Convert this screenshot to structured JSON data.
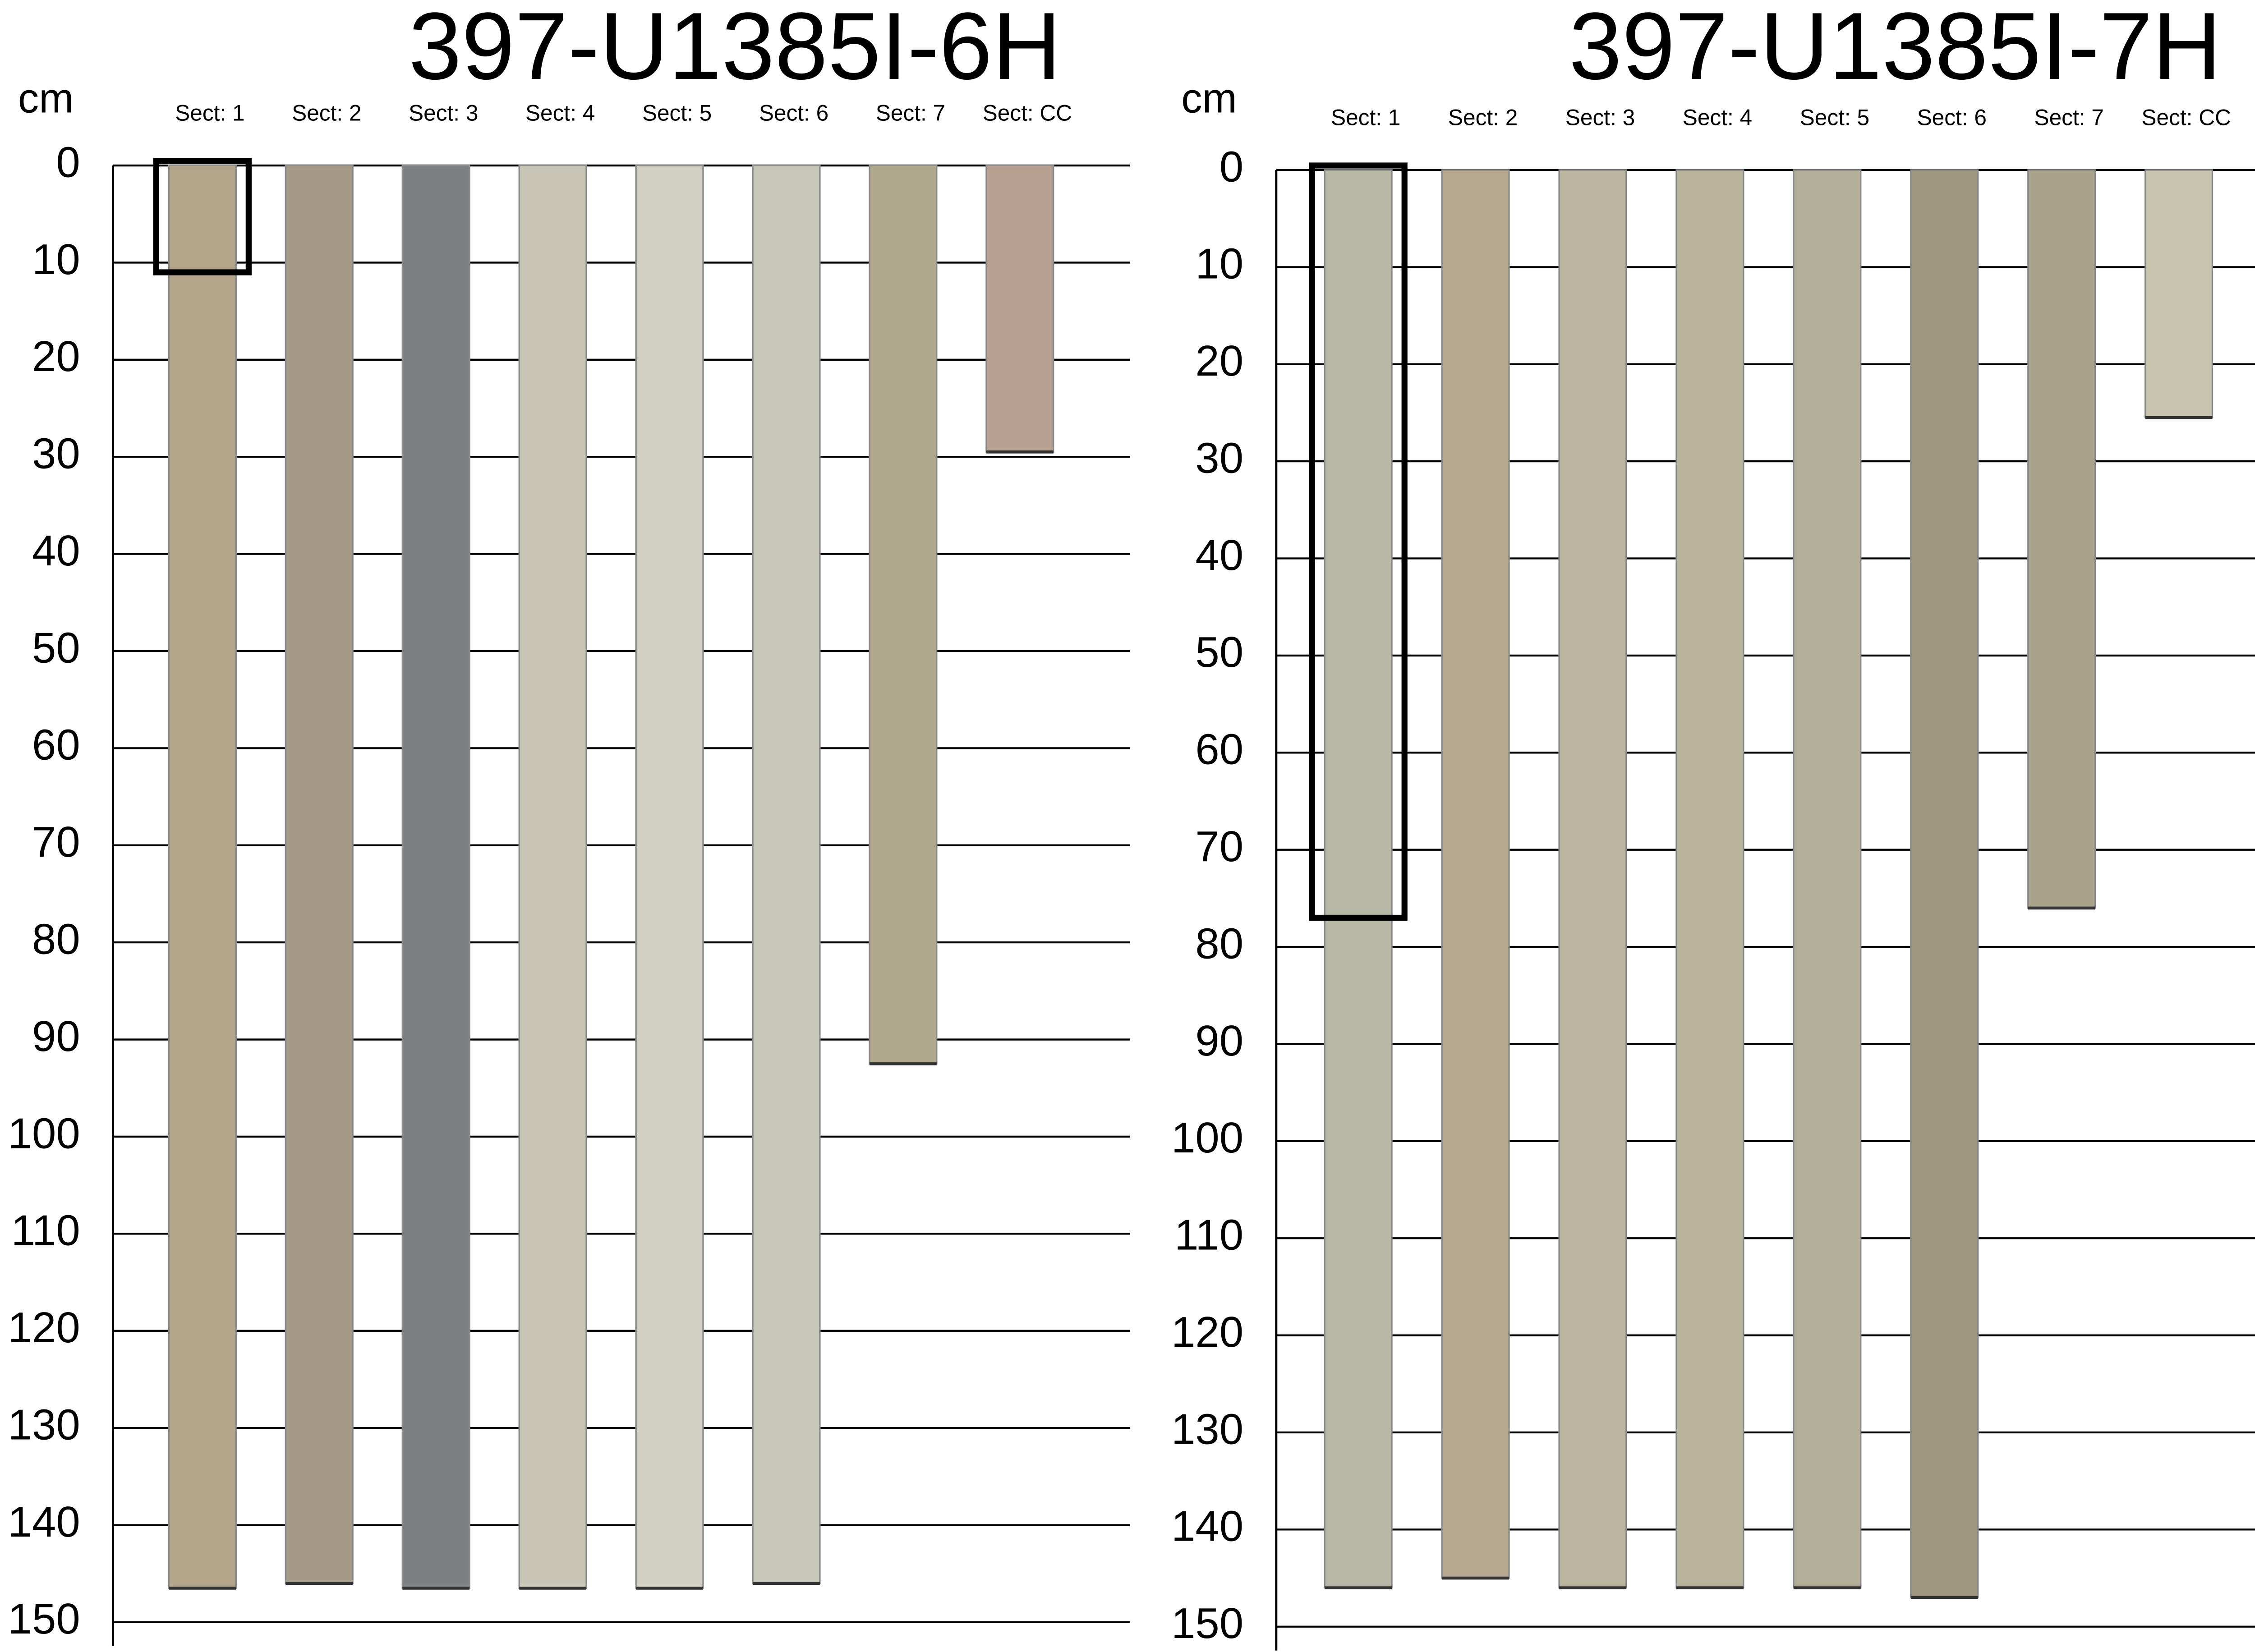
{
  "panels": [
    {
      "title": "397-U1385I-6H",
      "axis_label": "cm",
      "ylim": [
        0,
        150
      ],
      "yticks": [
        0,
        10,
        20,
        30,
        40,
        50,
        60,
        70,
        80,
        90,
        100,
        110,
        120,
        130,
        140,
        150
      ],
      "sections": [
        {
          "label": "Sect: 1",
          "length": 146.5,
          "color": "#b3a48a"
        },
        {
          "label": "Sect: 2",
          "length": 146,
          "color": "#a49a86"
        },
        {
          "label": "Sect: 3",
          "length": 146.5,
          "color": "#7d7f82"
        },
        {
          "label": "Sect: 4",
          "length": 146.5,
          "color": "#c9c6b6"
        },
        {
          "label": "Sect: 5",
          "length": 146.5,
          "color": "#d2d0c3"
        },
        {
          "label": "Sect: 6",
          "length": 146,
          "color": "#c8c8b8"
        },
        {
          "label": "Sect: 7",
          "length": 92.5,
          "color": "#b0a88c"
        },
        {
          "label": "Sect: CC",
          "length": 29.5,
          "color": "#b7a090"
        }
      ],
      "highlight": {
        "section": 0,
        "top": 0,
        "bottom": 11
      }
    },
    {
      "title": "397-U1385I-7H",
      "axis_label": "cm",
      "ylim": [
        0,
        150
      ],
      "yticks": [
        0,
        10,
        20,
        30,
        40,
        50,
        60,
        70,
        80,
        90,
        100,
        110,
        120,
        130,
        140,
        150
      ],
      "sections": [
        {
          "label": "Sect: 1",
          "length": 146,
          "color": "#b8b8a6"
        },
        {
          "label": "Sect: 2",
          "length": 145,
          "color": "#b8a890"
        },
        {
          "label": "Sect: 3",
          "length": 146,
          "color": "#bcb59f"
        },
        {
          "label": "Sect: 4",
          "length": 146,
          "color": "#b9b39c"
        },
        {
          "label": "Sect: 5",
          "length": 146,
          "color": "#b3ae97"
        },
        {
          "label": "Sect: 6",
          "length": 147,
          "color": "#9e967f"
        },
        {
          "label": "Sect: 7",
          "length": 76,
          "color": "#a9a38b"
        },
        {
          "label": "Sect: CC",
          "length": 25.5,
          "color": "#c7c3ad"
        }
      ],
      "highlight": {
        "section": 0,
        "top": 0,
        "bottom": 77
      }
    }
  ]
}
